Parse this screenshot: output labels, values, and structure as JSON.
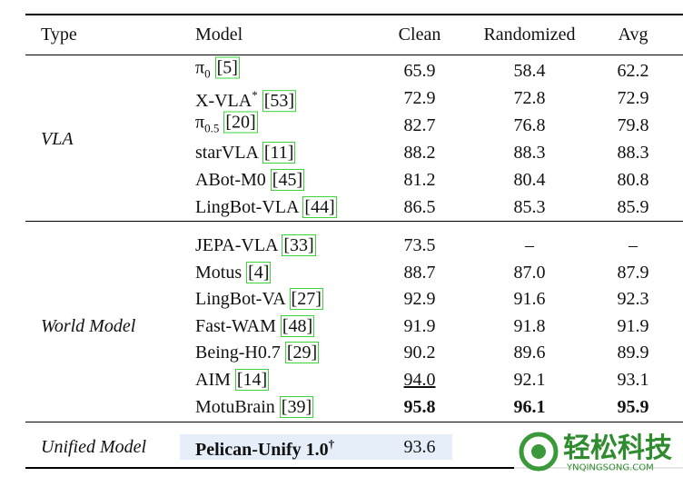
{
  "header": {
    "columns": [
      "Type",
      "Model",
      "Clean",
      "Randomized",
      "Avg"
    ]
  },
  "groups": [
    {
      "type": "VLA",
      "rows": [
        {
          "model": {
            "name": "π",
            "sub": "0",
            "cite": "[5]"
          },
          "values": [
            "65.9",
            "58.4",
            "62.2"
          ]
        },
        {
          "model": {
            "name": "X-VLA",
            "sup": "*",
            "cite": "[53]"
          },
          "values": [
            "72.9",
            "72.8",
            "72.9"
          ]
        },
        {
          "model": {
            "name": "π",
            "sub": "0.5",
            "cite": "[20]"
          },
          "values": [
            "82.7",
            "76.8",
            "79.8"
          ]
        },
        {
          "model": {
            "name": "starVLA",
            "cite": "[11]"
          },
          "values": [
            "88.2",
            "88.3",
            "88.3"
          ]
        },
        {
          "model": {
            "name": "ABot-M0",
            "cite": "[45]"
          },
          "values": [
            "81.2",
            "80.4",
            "80.8"
          ]
        },
        {
          "model": {
            "name": "LingBot-VLA",
            "cite": "[44]"
          },
          "values": [
            "86.5",
            "85.3",
            "85.9"
          ]
        }
      ]
    },
    {
      "type": "World Model",
      "rows": [
        {
          "model": {
            "name": "JEPA-VLA",
            "cite": "[33]"
          },
          "values": [
            "73.5",
            "–",
            "–"
          ]
        },
        {
          "model": {
            "name": "Motus",
            "cite": "[4]"
          },
          "values": [
            "88.7",
            "87.0",
            "87.9"
          ]
        },
        {
          "model": {
            "name": "LingBot-VA",
            "cite": "[27]"
          },
          "values": [
            "92.9",
            "91.6",
            "92.3"
          ]
        },
        {
          "model": {
            "name": "Fast-WAM",
            "cite": "[48]"
          },
          "values": [
            "91.9",
            "91.8",
            "91.9"
          ]
        },
        {
          "model": {
            "name": "Being-H0.7",
            "cite": "[29]"
          },
          "values": [
            "90.2",
            "89.6",
            "89.9"
          ]
        },
        {
          "model": {
            "name": "AIM",
            "cite": "[14]"
          },
          "values": [
            "94.0",
            "92.1",
            "93.1"
          ],
          "underline": [
            0
          ]
        },
        {
          "model": {
            "name": "MotuBrain",
            "cite": "[39]"
          },
          "values": [
            "95.8",
            "96.1",
            "95.9"
          ],
          "bold": [
            0,
            1,
            2
          ]
        }
      ]
    },
    {
      "type": "Unified Model",
      "rows": [
        {
          "model": {
            "name": "Pelican-Unify 1.0",
            "sup": "†",
            "bold": true
          },
          "values": [
            "93.6"
          ],
          "highlight": true
        }
      ]
    }
  ],
  "watermark": {
    "brand": "轻松科技",
    "site": "YNQINGSONG.COM"
  }
}
